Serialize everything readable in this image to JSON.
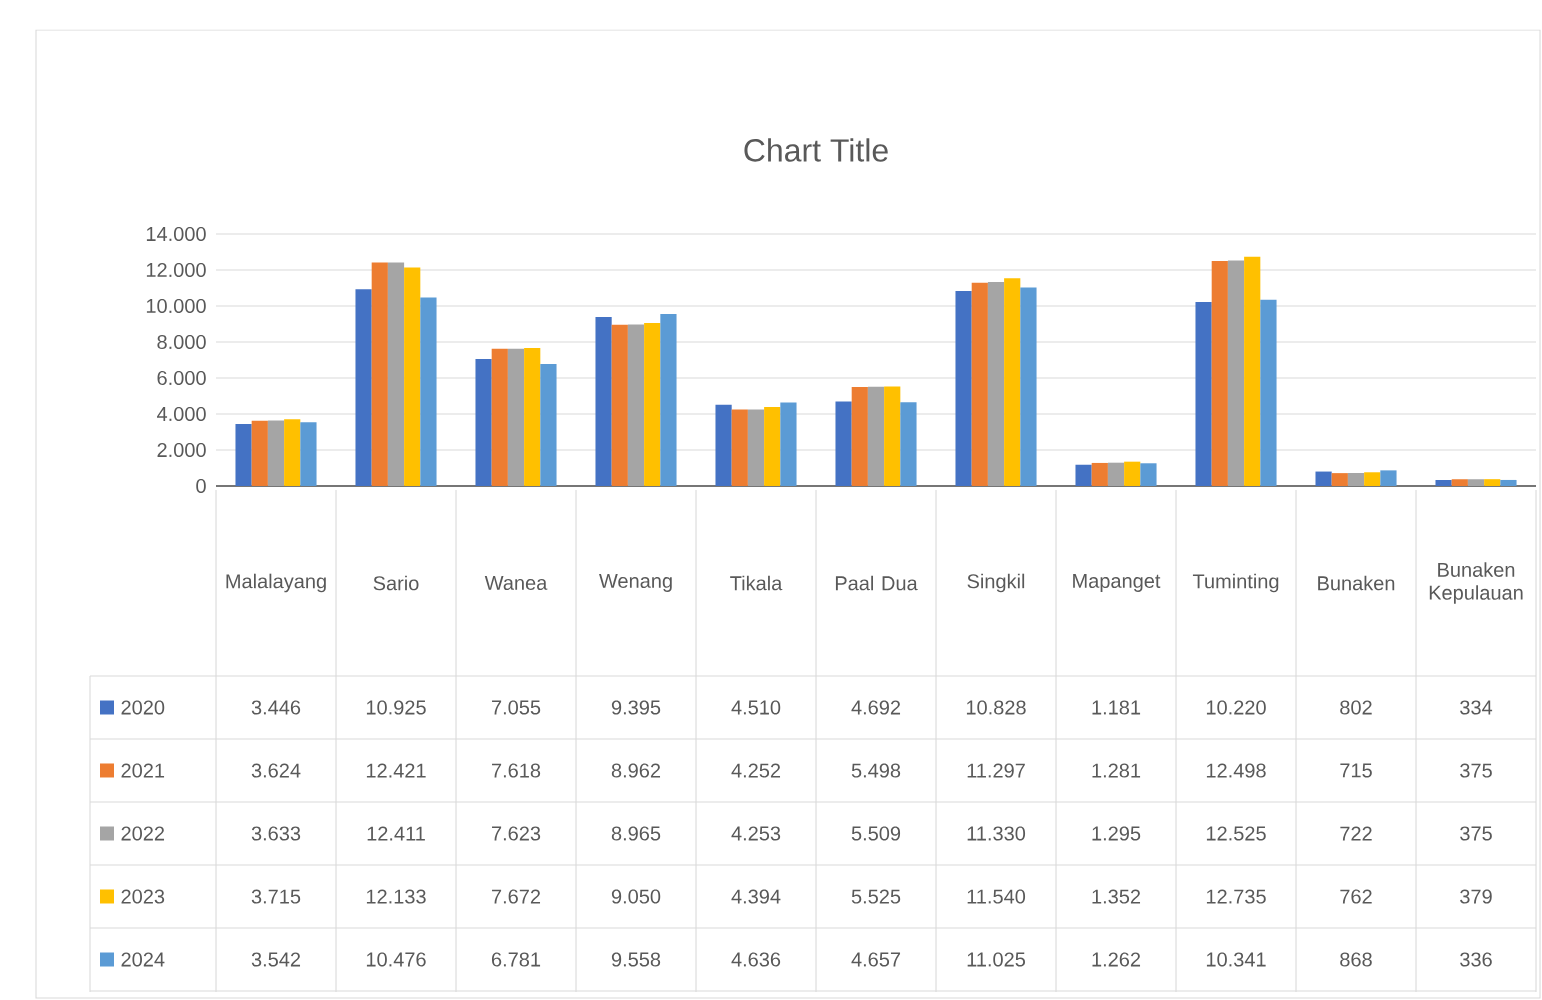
{
  "chart_data": {
    "type": "bar",
    "title": "Chart Title",
    "categories": [
      "Malalayang",
      "Sario",
      "Wanea",
      "Wenang",
      "Tikala",
      "Paal Dua",
      "Singkil",
      "Mapanget",
      "Tuminting",
      "Bunaken",
      "Bunaken Kepulauan"
    ],
    "series": [
      {
        "name": "2020",
        "color": "#4472c4",
        "values": [
          3446,
          10925,
          7055,
          9395,
          4510,
          4692,
          10828,
          1181,
          10220,
          802,
          334
        ],
        "value_labels": [
          "3.446",
          "10.925",
          "7.055",
          "9.395",
          "4.510",
          "4.692",
          "10.828",
          "1.181",
          "10.220",
          "802",
          "334"
        ]
      },
      {
        "name": "2021",
        "color": "#ed7d31",
        "values": [
          3624,
          12421,
          7618,
          8962,
          4252,
          5498,
          11297,
          1281,
          12498,
          715,
          375
        ],
        "value_labels": [
          "3.624",
          "12.421",
          "7.618",
          "8.962",
          "4.252",
          "5.498",
          "11.297",
          "1.281",
          "12.498",
          "715",
          "375"
        ]
      },
      {
        "name": "2022",
        "color": "#a5a5a5",
        "values": [
          3633,
          12411,
          7623,
          8965,
          4253,
          5509,
          11330,
          1295,
          12525,
          722,
          375
        ],
        "value_labels": [
          "3.633",
          "12.411",
          "7.623",
          "8.965",
          "4.253",
          "5.509",
          "11.330",
          "1.295",
          "12.525",
          "722",
          "375"
        ]
      },
      {
        "name": "2023",
        "color": "#ffc000",
        "values": [
          3715,
          12133,
          7672,
          9050,
          4394,
          5525,
          11540,
          1352,
          12735,
          762,
          379
        ],
        "value_labels": [
          "3.715",
          "12.133",
          "7.672",
          "9.050",
          "4.394",
          "5.525",
          "11.540",
          "1.352",
          "12.735",
          "762",
          "379"
        ]
      },
      {
        "name": "2024",
        "color": "#5b9bd5",
        "values": [
          3542,
          10476,
          6781,
          9558,
          4636,
          4657,
          11025,
          1262,
          10341,
          868,
          336
        ],
        "value_labels": [
          "3.542",
          "10.476",
          "6.781",
          "9.558",
          "4.636",
          "4.657",
          "11.025",
          "1.262",
          "10.341",
          "868",
          "336"
        ]
      }
    ],
    "ylim": [
      0,
      14000
    ],
    "yticks": [
      0,
      {
        "value": 2000,
        "label": "2.000"
      },
      {
        "value": 4000,
        "label": "4.000"
      },
      {
        "value": 6000,
        "label": "6.000"
      },
      {
        "value": 8000,
        "label": "8.000"
      },
      {
        "value": 10000,
        "label": "10.000"
      },
      {
        "value": 12000,
        "label": "12.000"
      },
      {
        "value": 14000,
        "label": "14.000"
      }
    ],
    "grid": "y",
    "legend": "bottom"
  }
}
